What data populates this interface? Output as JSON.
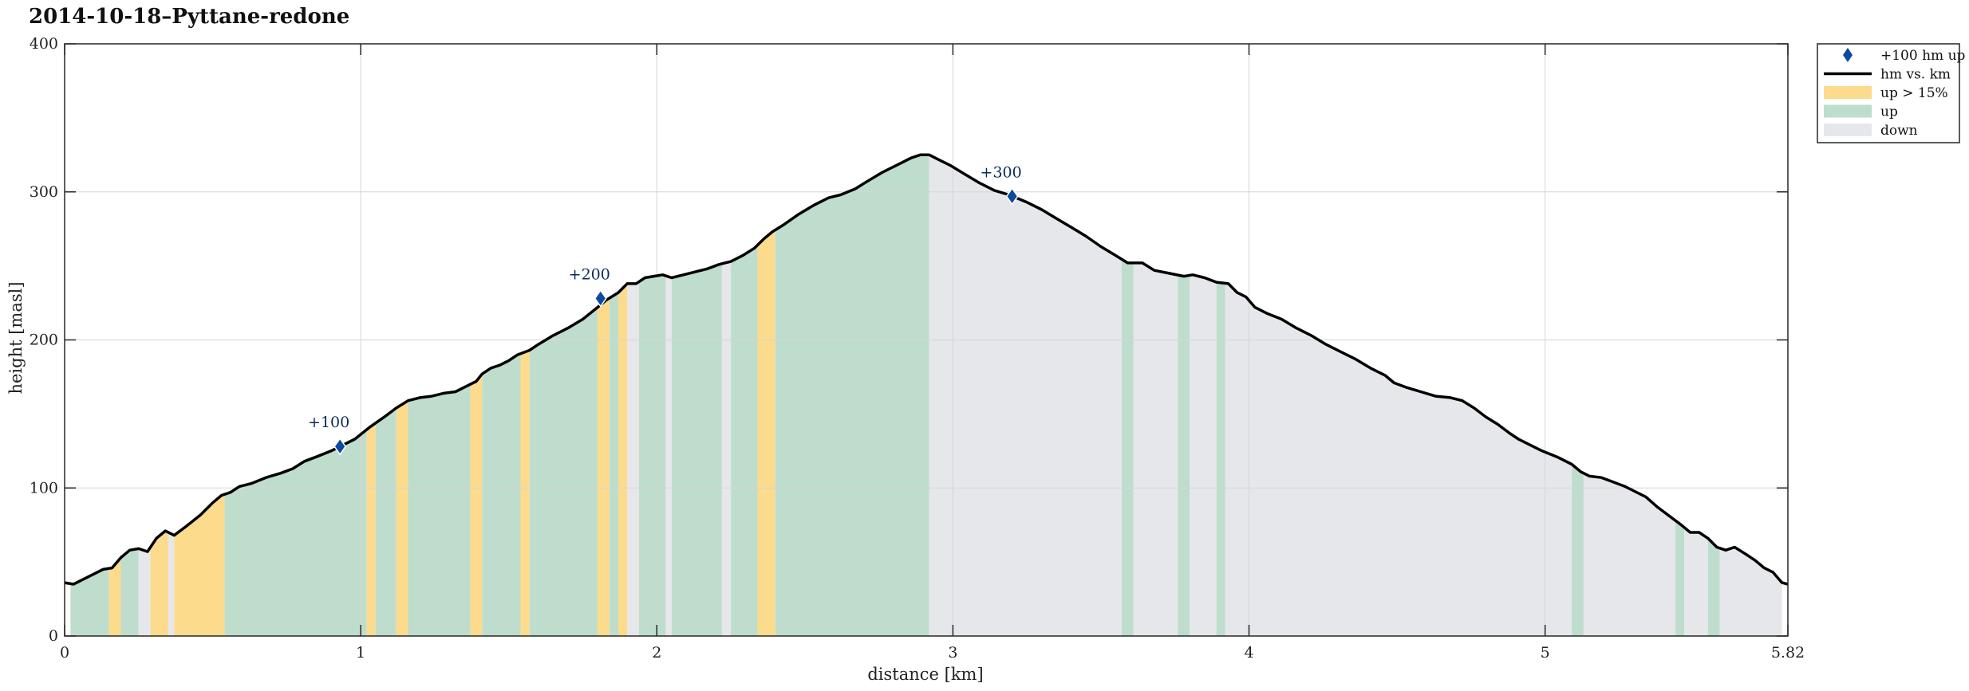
{
  "chart_data": {
    "type": "area",
    "title": "2014-10-18–Pyttane-redone",
    "xlabel": "distance [km]",
    "ylabel": "height [masl]",
    "xlim": [
      0,
      5.82
    ],
    "ylim": [
      0,
      400
    ],
    "xticks": [
      "0",
      "1",
      "2",
      "3",
      "4",
      "5",
      "5.82"
    ],
    "xtick_values": [
      0,
      1,
      2,
      3,
      4,
      5,
      5.82
    ],
    "yticks": [
      "0",
      "100",
      "200",
      "300",
      "400"
    ],
    "ytick_values": [
      0,
      100,
      200,
      300,
      400
    ],
    "grid": true,
    "legend_placement": "outside-top-right",
    "legend": [
      {
        "label": "+100 hm up",
        "kind": "marker",
        "color": "#0b4aa2"
      },
      {
        "label": "hm vs. km",
        "kind": "line",
        "color": "#000000"
      },
      {
        "label": "up > 15%",
        "kind": "patch",
        "color": "#fddb8c"
      },
      {
        "label": "up",
        "kind": "patch",
        "color": "#bfddcd"
      },
      {
        "label": "down",
        "kind": "patch",
        "color": "#e6e7ea"
      }
    ],
    "colors": {
      "line": "#000000",
      "steep_up": "#fddb8c",
      "up": "#bfddcd",
      "down": "#e6e7ea",
      "marker": "#0b4aa2",
      "grid": "#d5d5d5"
    },
    "series": [
      {
        "name": "hm vs. km",
        "points": [
          [
            0.0,
            36
          ],
          [
            0.03,
            35
          ],
          [
            0.08,
            40
          ],
          [
            0.13,
            45
          ],
          [
            0.16,
            46
          ],
          [
            0.19,
            53
          ],
          [
            0.22,
            58
          ],
          [
            0.25,
            59
          ],
          [
            0.28,
            57
          ],
          [
            0.31,
            66
          ],
          [
            0.34,
            71
          ],
          [
            0.37,
            68
          ],
          [
            0.41,
            74
          ],
          [
            0.46,
            82
          ],
          [
            0.5,
            90
          ],
          [
            0.53,
            95
          ],
          [
            0.56,
            97
          ],
          [
            0.59,
            101
          ],
          [
            0.63,
            103
          ],
          [
            0.68,
            107
          ],
          [
            0.73,
            110
          ],
          [
            0.77,
            113
          ],
          [
            0.81,
            118
          ],
          [
            0.85,
            121
          ],
          [
            0.9,
            125
          ],
          [
            0.93,
            128
          ],
          [
            0.98,
            133
          ],
          [
            1.03,
            141
          ],
          [
            1.08,
            148
          ],
          [
            1.12,
            154
          ],
          [
            1.16,
            159
          ],
          [
            1.2,
            161
          ],
          [
            1.24,
            162
          ],
          [
            1.28,
            164
          ],
          [
            1.32,
            165
          ],
          [
            1.36,
            169
          ],
          [
            1.39,
            172
          ],
          [
            1.41,
            177
          ],
          [
            1.44,
            181
          ],
          [
            1.47,
            183
          ],
          [
            1.5,
            186
          ],
          [
            1.53,
            190
          ],
          [
            1.57,
            193
          ],
          [
            1.6,
            197
          ],
          [
            1.65,
            203
          ],
          [
            1.7,
            208
          ],
          [
            1.75,
            214
          ],
          [
            1.8,
            222
          ],
          [
            1.83,
            227
          ],
          [
            1.87,
            232
          ],
          [
            1.9,
            238
          ],
          [
            1.93,
            238
          ],
          [
            1.96,
            242
          ],
          [
            1.99,
            243
          ],
          [
            2.02,
            244
          ],
          [
            2.05,
            242
          ],
          [
            2.09,
            244
          ],
          [
            2.13,
            246
          ],
          [
            2.17,
            248
          ],
          [
            2.21,
            251
          ],
          [
            2.25,
            253
          ],
          [
            2.29,
            257
          ],
          [
            2.33,
            262
          ],
          [
            2.36,
            268
          ],
          [
            2.39,
            273
          ],
          [
            2.43,
            278
          ],
          [
            2.48,
            285
          ],
          [
            2.53,
            291
          ],
          [
            2.58,
            296
          ],
          [
            2.62,
            298
          ],
          [
            2.67,
            302
          ],
          [
            2.71,
            307
          ],
          [
            2.76,
            313
          ],
          [
            2.81,
            318
          ],
          [
            2.86,
            323
          ],
          [
            2.89,
            325
          ],
          [
            2.92,
            325
          ],
          [
            2.95,
            322
          ],
          [
            2.99,
            318
          ],
          [
            3.04,
            312
          ],
          [
            3.09,
            306
          ],
          [
            3.14,
            301
          ],
          [
            3.19,
            298
          ],
          [
            3.25,
            293
          ],
          [
            3.3,
            288
          ],
          [
            3.35,
            282
          ],
          [
            3.4,
            276
          ],
          [
            3.45,
            270
          ],
          [
            3.5,
            263
          ],
          [
            3.55,
            257
          ],
          [
            3.59,
            252
          ],
          [
            3.64,
            252
          ],
          [
            3.68,
            247
          ],
          [
            3.73,
            245
          ],
          [
            3.78,
            243
          ],
          [
            3.81,
            244
          ],
          [
            3.85,
            242
          ],
          [
            3.89,
            239
          ],
          [
            3.93,
            238
          ],
          [
            3.96,
            232
          ],
          [
            3.99,
            229
          ],
          [
            4.02,
            222
          ],
          [
            4.06,
            218
          ],
          [
            4.11,
            214
          ],
          [
            4.16,
            208
          ],
          [
            4.21,
            203
          ],
          [
            4.26,
            197
          ],
          [
            4.31,
            192
          ],
          [
            4.36,
            187
          ],
          [
            4.41,
            181
          ],
          [
            4.46,
            176
          ],
          [
            4.49,
            171
          ],
          [
            4.53,
            168
          ],
          [
            4.58,
            165
          ],
          [
            4.63,
            162
          ],
          [
            4.68,
            161
          ],
          [
            4.72,
            159
          ],
          [
            4.76,
            154
          ],
          [
            4.8,
            148
          ],
          [
            4.84,
            143
          ],
          [
            4.88,
            137
          ],
          [
            4.91,
            133
          ],
          [
            4.95,
            129
          ],
          [
            4.99,
            125
          ],
          [
            5.04,
            121
          ],
          [
            5.09,
            116
          ],
          [
            5.12,
            111
          ],
          [
            5.15,
            108
          ],
          [
            5.19,
            107
          ],
          [
            5.23,
            104
          ],
          [
            5.27,
            101
          ],
          [
            5.3,
            98
          ],
          [
            5.34,
            94
          ],
          [
            5.38,
            87
          ],
          [
            5.42,
            81
          ],
          [
            5.46,
            75
          ],
          [
            5.49,
            70
          ],
          [
            5.52,
            70
          ],
          [
            5.55,
            66
          ],
          [
            5.58,
            60
          ],
          [
            5.61,
            58
          ],
          [
            5.64,
            60
          ],
          [
            5.68,
            55
          ],
          [
            5.71,
            51
          ],
          [
            5.74,
            46
          ],
          [
            5.77,
            43
          ],
          [
            5.8,
            36
          ],
          [
            5.82,
            35
          ]
        ]
      }
    ],
    "segments": [
      {
        "from": 0.02,
        "to": 0.15,
        "kind": "up"
      },
      {
        "from": 0.15,
        "to": 0.19,
        "kind": "steep_up"
      },
      {
        "from": 0.19,
        "to": 0.25,
        "kind": "up"
      },
      {
        "from": 0.25,
        "to": 0.29,
        "kind": "down"
      },
      {
        "from": 0.29,
        "to": 0.35,
        "kind": "steep_up"
      },
      {
        "from": 0.35,
        "to": 0.37,
        "kind": "down"
      },
      {
        "from": 0.37,
        "to": 0.54,
        "kind": "steep_up"
      },
      {
        "from": 0.54,
        "to": 1.02,
        "kind": "up"
      },
      {
        "from": 1.02,
        "to": 1.05,
        "kind": "steep_up"
      },
      {
        "from": 1.05,
        "to": 1.12,
        "kind": "up"
      },
      {
        "from": 1.12,
        "to": 1.16,
        "kind": "steep_up"
      },
      {
        "from": 1.16,
        "to": 1.37,
        "kind": "up"
      },
      {
        "from": 1.37,
        "to": 1.41,
        "kind": "steep_up"
      },
      {
        "from": 1.41,
        "to": 1.54,
        "kind": "up"
      },
      {
        "from": 1.54,
        "to": 1.57,
        "kind": "steep_up"
      },
      {
        "from": 1.57,
        "to": 1.8,
        "kind": "up"
      },
      {
        "from": 1.8,
        "to": 1.84,
        "kind": "steep_up"
      },
      {
        "from": 1.84,
        "to": 1.87,
        "kind": "up"
      },
      {
        "from": 1.87,
        "to": 1.9,
        "kind": "steep_up"
      },
      {
        "from": 1.9,
        "to": 1.94,
        "kind": "down"
      },
      {
        "from": 1.94,
        "to": 2.03,
        "kind": "up"
      },
      {
        "from": 2.03,
        "to": 2.05,
        "kind": "down"
      },
      {
        "from": 2.05,
        "to": 2.22,
        "kind": "up"
      },
      {
        "from": 2.22,
        "to": 2.25,
        "kind": "down"
      },
      {
        "from": 2.25,
        "to": 2.34,
        "kind": "up"
      },
      {
        "from": 2.34,
        "to": 2.4,
        "kind": "steep_up"
      },
      {
        "from": 2.4,
        "to": 2.92,
        "kind": "up"
      },
      {
        "from": 2.92,
        "to": 3.57,
        "kind": "down"
      },
      {
        "from": 3.57,
        "to": 3.61,
        "kind": "up"
      },
      {
        "from": 3.61,
        "to": 3.76,
        "kind": "down"
      },
      {
        "from": 3.76,
        "to": 3.8,
        "kind": "up"
      },
      {
        "from": 3.8,
        "to": 3.89,
        "kind": "down"
      },
      {
        "from": 3.89,
        "to": 3.92,
        "kind": "up"
      },
      {
        "from": 3.92,
        "to": 5.09,
        "kind": "down"
      },
      {
        "from": 5.09,
        "to": 5.13,
        "kind": "up"
      },
      {
        "from": 5.13,
        "to": 5.44,
        "kind": "down"
      },
      {
        "from": 5.44,
        "to": 5.47,
        "kind": "up"
      },
      {
        "from": 5.47,
        "to": 5.55,
        "kind": "down"
      },
      {
        "from": 5.55,
        "to": 5.59,
        "kind": "up"
      },
      {
        "from": 5.59,
        "to": 5.8,
        "kind": "down"
      }
    ],
    "markers": [
      {
        "x": 0.93,
        "y": 128,
        "label": "+100"
      },
      {
        "x": 1.81,
        "y": 228,
        "label": "+200"
      },
      {
        "x": 3.2,
        "y": 297,
        "label": "+300"
      }
    ]
  }
}
